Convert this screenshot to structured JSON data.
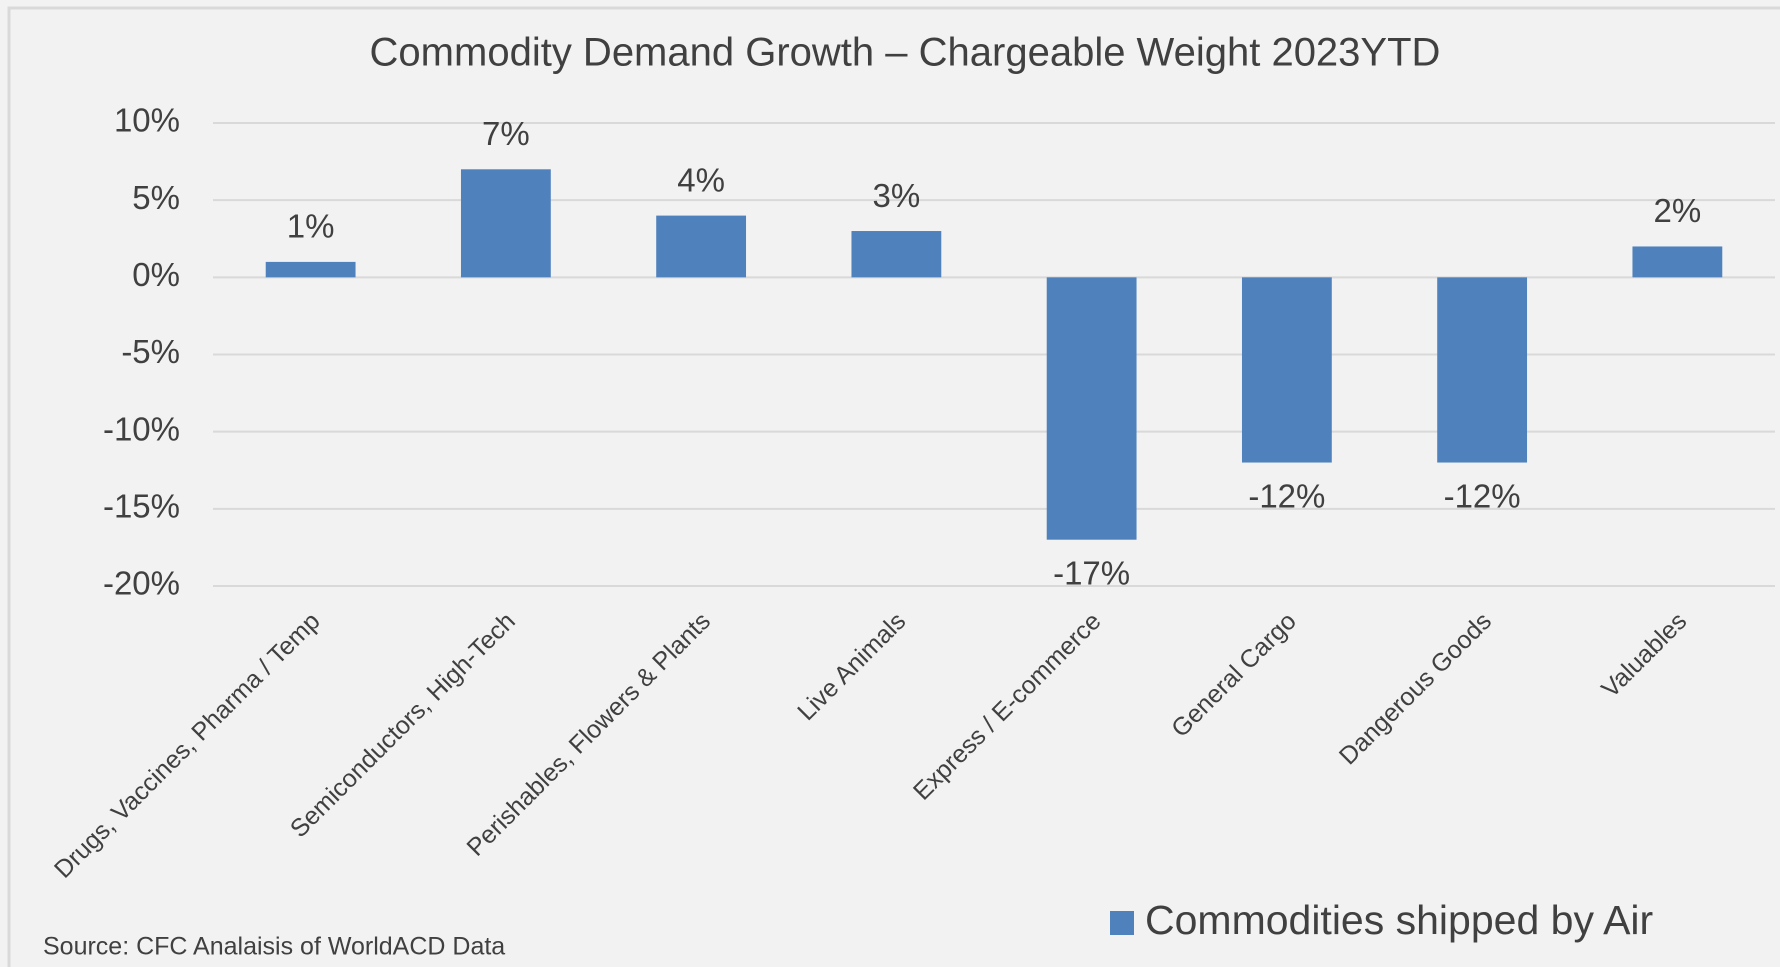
{
  "chart_data": {
    "type": "bar",
    "title": "Commodity Demand Growth – Chargeable Weight 2023YTD",
    "categories": [
      "Drugs, Vaccines, Pharma / Temp",
      "Semiconductors, High-Tech",
      "Perishables, Flowers & Plants",
      "Live Animals",
      "Express / E-commerce",
      "General Cargo",
      "Dangerous Goods",
      "Valuables"
    ],
    "series": [
      {
        "name": "Commodities shipped by Air",
        "color": "#4f81bd",
        "values": [
          1,
          7,
          4,
          3,
          -17,
          -12,
          -12,
          2
        ],
        "value_labels": [
          "1%",
          "7%",
          "4%",
          "3%",
          "-17%",
          "-12%",
          "-12%",
          "2%"
        ]
      }
    ],
    "ylim": [
      -20,
      10
    ],
    "yticks": [
      {
        "value": -20,
        "label": "-20%"
      },
      {
        "value": -15,
        "label": "-15%"
      },
      {
        "value": -10,
        "label": "-10%"
      },
      {
        "value": -5,
        "label": "-5%"
      },
      {
        "value": 0,
        "label": "0%"
      },
      {
        "value": 5,
        "label": "5%"
      },
      {
        "value": 10,
        "label": "10%"
      }
    ],
    "grid": true,
    "legend": "bottom-right",
    "source": "Source: CFC Analaisis of WorldACD Data"
  }
}
